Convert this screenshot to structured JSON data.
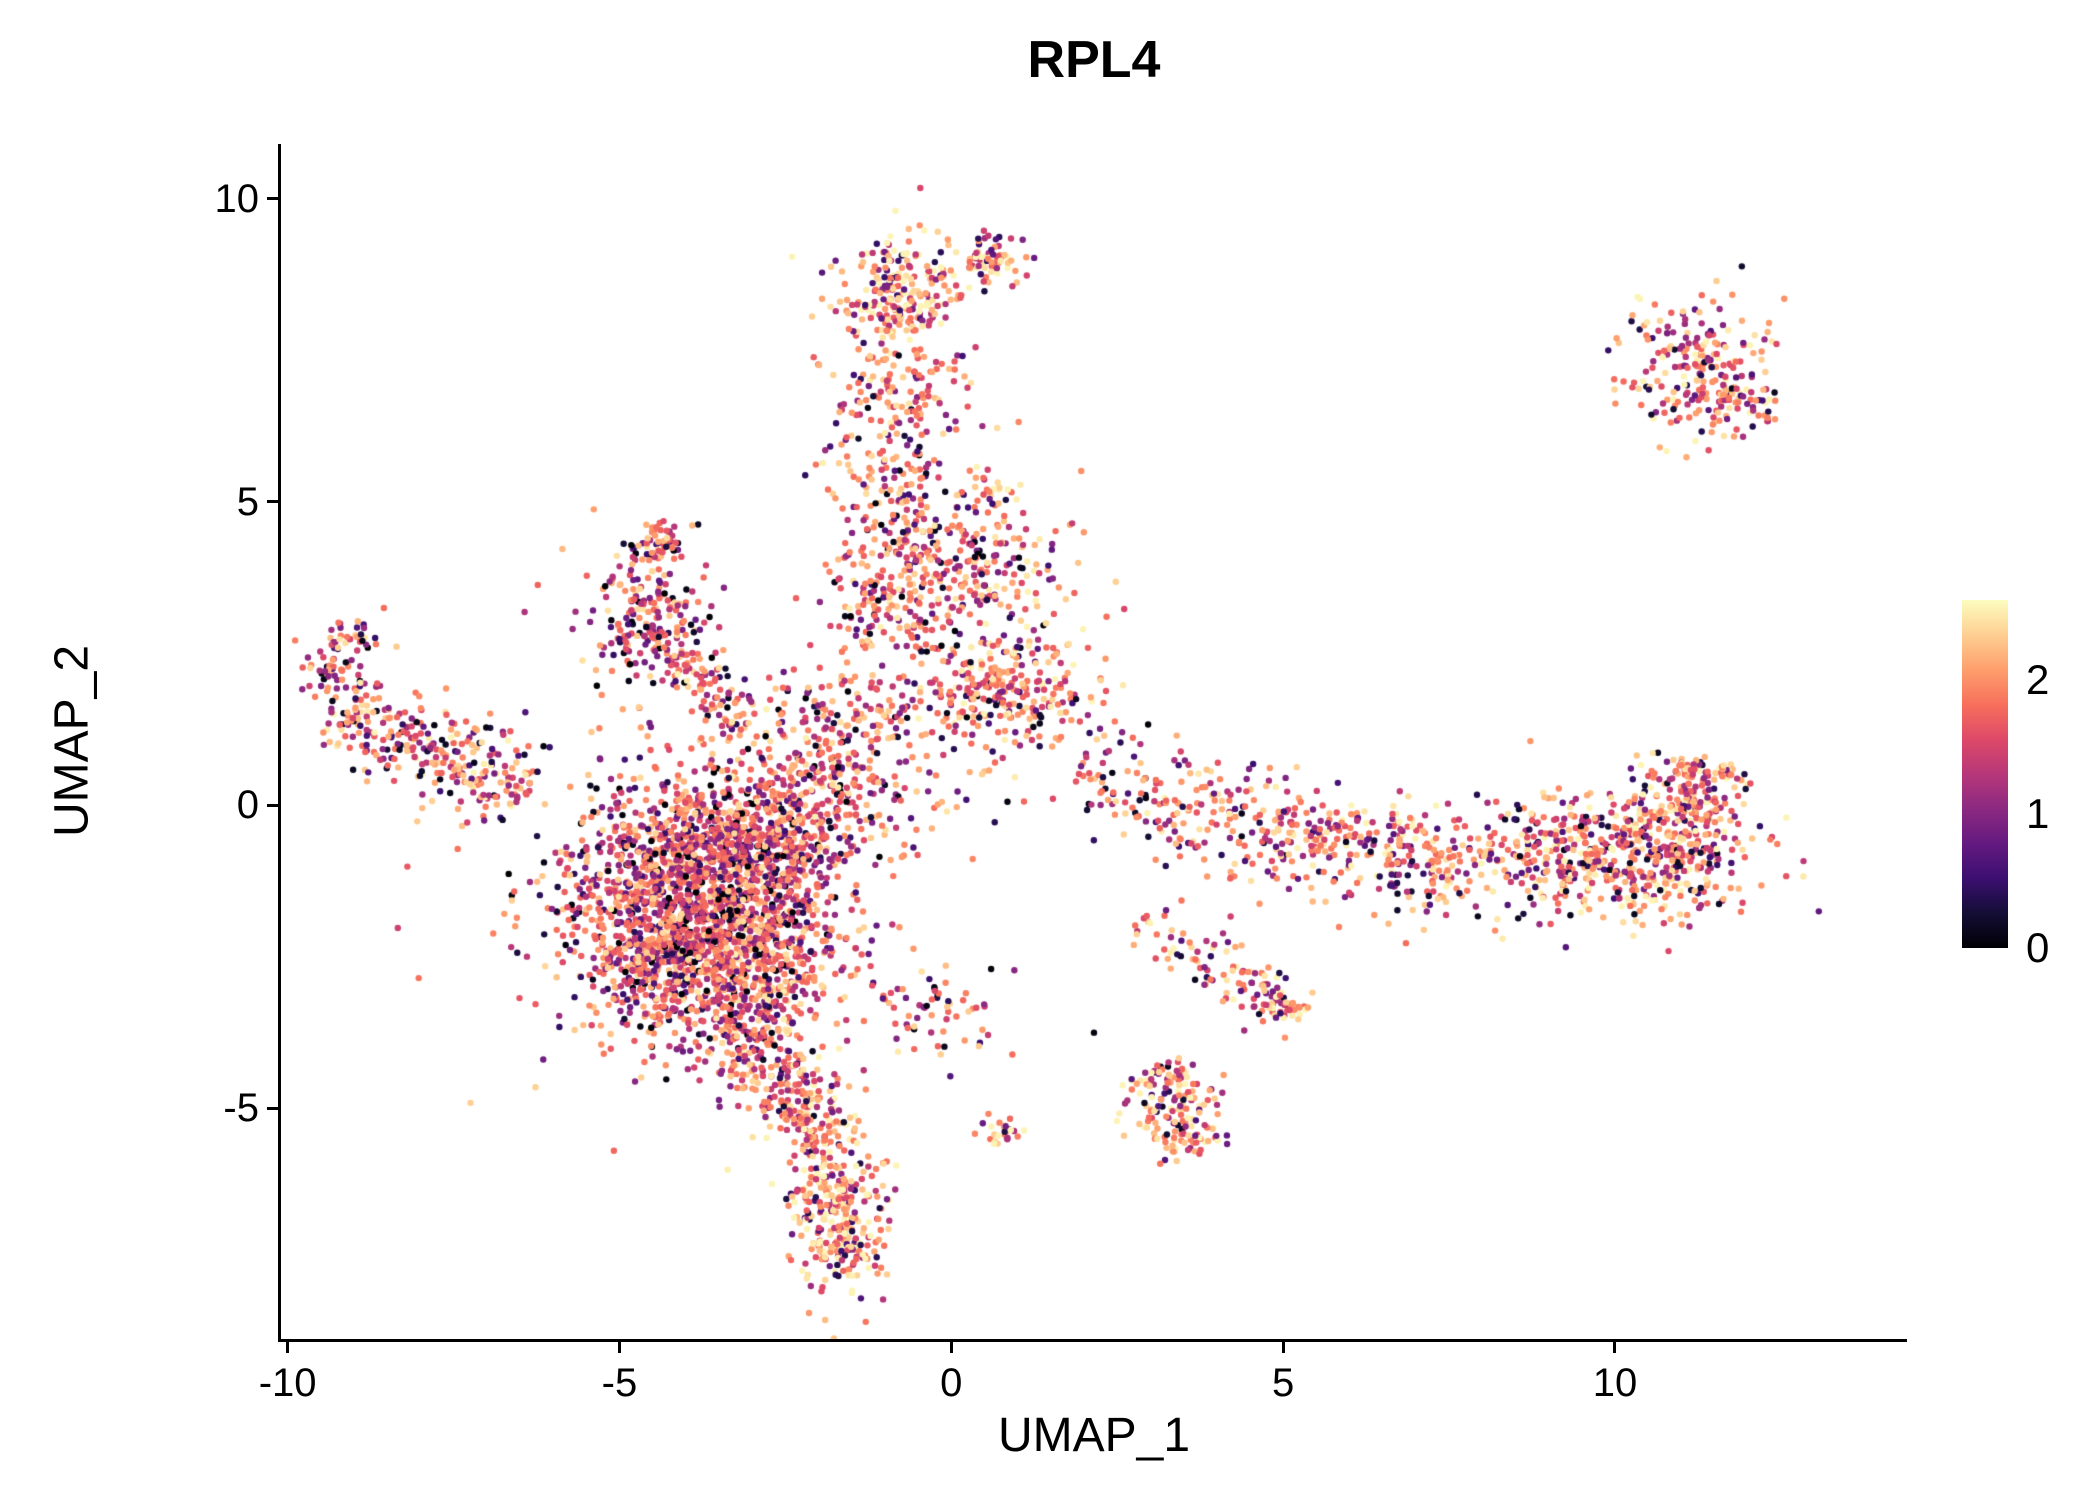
{
  "chart_data": {
    "type": "scatter",
    "title": "RPL4",
    "xlabel": "UMAP_1",
    "ylabel": "UMAP_2",
    "xlim": [
      -10.1,
      14.4
    ],
    "ylim": [
      -8.8,
      10.9
    ],
    "x_ticks": [
      -10,
      -5,
      0,
      5,
      10
    ],
    "y_ticks": [
      -5,
      0,
      5,
      10
    ],
    "grid": false,
    "legend": {
      "position": "right",
      "ticks": [
        0,
        1,
        2
      ],
      "vmin": 0,
      "vmax": 2.6
    },
    "colormap": {
      "name": "magma",
      "stops": [
        {
          "t": 0.0,
          "c": "#000004"
        },
        {
          "t": 0.1,
          "c": "#140e36"
        },
        {
          "t": 0.2,
          "c": "#3b0f70"
        },
        {
          "t": 0.3,
          "c": "#641a80"
        },
        {
          "t": 0.4,
          "c": "#8c2981"
        },
        {
          "t": 0.5,
          "c": "#b73779"
        },
        {
          "t": 0.6,
          "c": "#de4968"
        },
        {
          "t": 0.7,
          "c": "#f7705c"
        },
        {
          "t": 0.8,
          "c": "#fe9f6d"
        },
        {
          "t": 0.9,
          "c": "#fecf92"
        },
        {
          "t": 1.0,
          "c": "#fcfdbf"
        }
      ]
    },
    "expression_mixture": [
      {
        "w": 0.05,
        "lo": 0.0,
        "hi": 0.2
      },
      {
        "w": 0.1,
        "lo": 0.2,
        "hi": 0.9
      },
      {
        "w": 0.27,
        "lo": 0.9,
        "hi": 1.6
      },
      {
        "w": 0.43,
        "lo": 1.6,
        "hi": 2.25
      },
      {
        "w": 0.15,
        "lo": 2.25,
        "hi": 2.55
      }
    ],
    "clusters": [
      {
        "name": "main-blob-core",
        "type": "gauss",
        "n": 900,
        "cx": -3.9,
        "cy": -1.5,
        "sx": 0.9,
        "sy": 0.85,
        "bias": -0.15
      },
      {
        "name": "main-blob-upper",
        "type": "gauss",
        "n": 500,
        "cx": -3.4,
        "cy": -0.5,
        "sx": 1.0,
        "sy": 0.55,
        "bias": -0.1
      },
      {
        "name": "main-blob-right",
        "type": "gauss",
        "n": 450,
        "cx": -2.9,
        "cy": -2.1,
        "sx": 0.7,
        "sy": 0.9,
        "bias": -0.1
      },
      {
        "name": "main-blob-left-low",
        "type": "gauss",
        "n": 280,
        "cx": -4.6,
        "cy": -2.7,
        "sx": 0.55,
        "sy": 0.65,
        "bias": -0.1
      },
      {
        "name": "main-blob-low",
        "type": "gauss",
        "n": 280,
        "cx": -3.0,
        "cy": -3.4,
        "sx": 0.5,
        "sy": 0.7,
        "bias": 0
      },
      {
        "name": "blob-fringe",
        "type": "gauss",
        "n": 220,
        "cx": -3.7,
        "cy": -1.4,
        "sx": 1.5,
        "sy": 1.4,
        "bias": 0
      },
      {
        "name": "tail-streak",
        "type": "line",
        "n": 170,
        "x1": -2.6,
        "y1": -4.3,
        "x2": -1.9,
        "y2": -5.6,
        "w": 0.35,
        "bias": 0.15
      },
      {
        "name": "tail-knot",
        "type": "gauss",
        "n": 260,
        "cx": -1.75,
        "cy": -6.6,
        "sx": 0.38,
        "sy": 0.6,
        "bias": 0.3
      },
      {
        "name": "tail-tip",
        "type": "gauss",
        "n": 60,
        "cx": -1.6,
        "cy": -7.3,
        "sx": 0.3,
        "sy": 0.25,
        "bias": 0.3
      },
      {
        "name": "column",
        "type": "line",
        "n": 380,
        "x1": -1.05,
        "y1": 2.6,
        "x2": -0.7,
        "y2": 7.4,
        "w": 0.55,
        "bias": 0
      },
      {
        "name": "column-top-knot",
        "type": "gauss",
        "n": 240,
        "cx": -0.75,
        "cy": 8.4,
        "sx": 0.45,
        "sy": 0.5,
        "bias": 0.3
      },
      {
        "name": "column-top-cap",
        "type": "gauss",
        "n": 70,
        "cx": 0.55,
        "cy": 9.0,
        "sx": 0.3,
        "sy": 0.22,
        "bias": 0.3
      },
      {
        "name": "column-mid-bulge",
        "type": "gauss",
        "n": 240,
        "cx": 0.3,
        "cy": 3.9,
        "sx": 0.75,
        "sy": 0.6,
        "bias": 0
      },
      {
        "name": "column-right-knot",
        "type": "gauss",
        "n": 260,
        "cx": 0.8,
        "cy": 1.9,
        "sx": 0.65,
        "sy": 0.5,
        "bias": 0.1
      },
      {
        "name": "column-base",
        "type": "gauss",
        "n": 300,
        "cx": -1.4,
        "cy": 1.1,
        "sx": 0.9,
        "sy": 0.75,
        "bias": -0.05
      },
      {
        "name": "column-satellite",
        "type": "gauss",
        "n": 25,
        "cx": 0.55,
        "cy": 5.2,
        "sx": 0.2,
        "sy": 0.15,
        "bias": 0.2
      },
      {
        "name": "saddle-sparse",
        "type": "gauss",
        "n": 120,
        "cx": -2.3,
        "cy": 0.2,
        "sx": 0.8,
        "sy": 0.6,
        "bias": 0
      },
      {
        "name": "triangle",
        "type": "gauss",
        "n": 230,
        "cx": -4.5,
        "cy": 3.1,
        "sx": 0.5,
        "sy": 0.65,
        "bias": -0.1
      },
      {
        "name": "triangle-tip",
        "type": "gauss",
        "n": 45,
        "cx": -4.35,
        "cy": 4.35,
        "sx": 0.18,
        "sy": 0.18,
        "bias": 0
      },
      {
        "name": "triangle-edge",
        "type": "line",
        "n": 90,
        "x1": -4.1,
        "y1": 2.5,
        "x2": -3.1,
        "y2": 1.2,
        "w": 0.22,
        "bias": 0
      },
      {
        "name": "left-arm",
        "type": "line",
        "n": 300,
        "x1": -9.35,
        "y1": 1.55,
        "x2": -6.4,
        "y2": 0.25,
        "w": 0.38,
        "bias": 0.05
      },
      {
        "name": "left-arm-hook",
        "type": "line",
        "n": 80,
        "x1": -9.4,
        "y1": 1.8,
        "x2": -8.95,
        "y2": 3.05,
        "w": 0.25,
        "bias": 0
      },
      {
        "name": "right-band-sparse",
        "type": "line",
        "n": 200,
        "x1": 1.9,
        "y1": 0.5,
        "x2": 4.9,
        "y2": -0.45,
        "w": 0.5,
        "bias": 0
      },
      {
        "name": "right-band-mid",
        "type": "line",
        "n": 240,
        "x1": 4.9,
        "y1": -0.45,
        "x2": 7.6,
        "y2": -0.95,
        "w": 0.45,
        "bias": 0.1
      },
      {
        "name": "right-band-dense",
        "type": "gauss",
        "n": 480,
        "cx": 9.4,
        "cy": -0.9,
        "sx": 1.15,
        "sy": 0.55,
        "bias": 0.1
      },
      {
        "name": "right-band-knot",
        "type": "gauss",
        "n": 220,
        "cx": 10.9,
        "cy": -0.55,
        "sx": 0.5,
        "sy": 0.5,
        "bias": 0.1
      },
      {
        "name": "right-band-tip",
        "type": "line",
        "n": 130,
        "x1": 11.1,
        "y1": -0.2,
        "x2": 11.35,
        "y2": 0.75,
        "w": 0.3,
        "bias": 0.1
      },
      {
        "name": "topright-cluster",
        "type": "gauss",
        "n": 210,
        "cx": 11.2,
        "cy": 7.2,
        "sx": 0.55,
        "sy": 0.55,
        "bias": 0.2
      },
      {
        "name": "topright-trail",
        "type": "line",
        "n": 40,
        "x1": 11.8,
        "y1": 6.9,
        "x2": 12.3,
        "y2": 6.3,
        "w": 0.2,
        "bias": 0.1
      },
      {
        "name": "diag-streak",
        "type": "line",
        "n": 90,
        "x1": 2.9,
        "y1": -1.9,
        "x2": 4.95,
        "y2": -3.25,
        "w": 0.22,
        "bias": 0.1
      },
      {
        "name": "diag-knot",
        "type": "gauss",
        "n": 45,
        "cx": 5.0,
        "cy": -3.3,
        "sx": 0.22,
        "sy": 0.18,
        "bias": 0.2
      },
      {
        "name": "vert-streak",
        "type": "line",
        "n": 170,
        "x1": 3.15,
        "y1": -4.3,
        "x2": 3.6,
        "y2": -5.75,
        "w": 0.28,
        "bias": 0.1
      },
      {
        "name": "small-low-cluster",
        "type": "gauss",
        "n": 26,
        "cx": 0.75,
        "cy": -5.35,
        "sx": 0.18,
        "sy": 0.12,
        "bias": 0.2
      },
      {
        "name": "mid-sparse",
        "type": "gauss",
        "n": 60,
        "cx": -0.2,
        "cy": -3.4,
        "sx": 0.6,
        "sy": 0.35,
        "bias": 0
      }
    ],
    "extra_points": [
      {
        "x": 2.15,
        "y": -3.75,
        "v": 0.05
      },
      {
        "x": 0.6,
        "y": -2.7,
        "v": 0.05
      },
      {
        "x": 0.95,
        "y": -2.72,
        "v": 1.0
      },
      {
        "x": 12.55,
        "y": 8.35,
        "v": 2.0
      },
      {
        "x": 12.3,
        "y": 7.8,
        "v": 2.2
      },
      {
        "x": -8.55,
        "y": 3.25,
        "v": 1.8
      }
    ]
  }
}
